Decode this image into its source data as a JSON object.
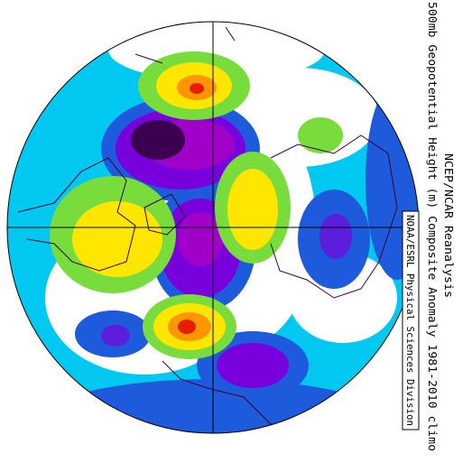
{
  "header": {
    "source": "NCEP/NCAR Reanalysis",
    "title": "500mb Geopotential Height (m) Composite Anomaly 1981-2010 climo",
    "credit": "NOAA/ESRL Physical Sciences Division"
  }
}
